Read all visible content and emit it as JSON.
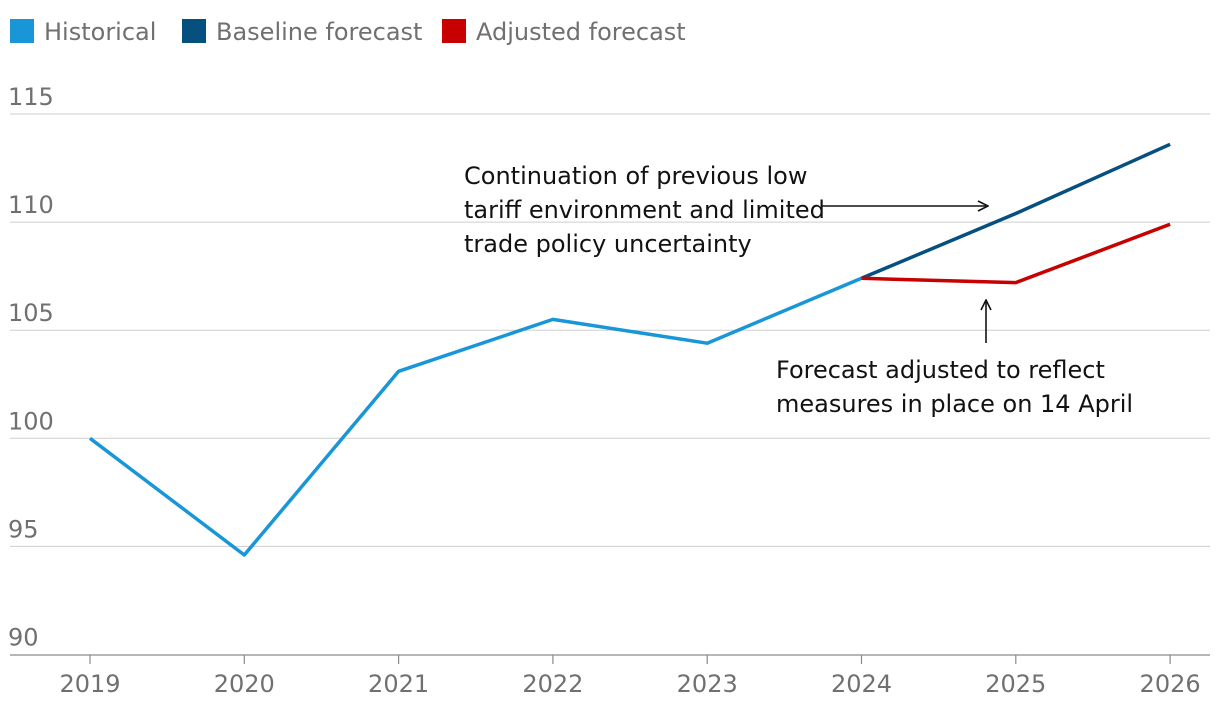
{
  "chart_data": {
    "type": "line",
    "title": "",
    "xlabel": "",
    "ylabel": "",
    "categories": [
      "2019",
      "2020",
      "2021",
      "2022",
      "2023",
      "2024",
      "2025",
      "2026"
    ],
    "y_ticks": [
      "115",
      "110",
      "105",
      "100",
      "95",
      "90"
    ],
    "ylim": [
      90,
      115
    ],
    "grid": true,
    "legend_position": "top-left",
    "series": [
      {
        "name": "Historical",
        "color": "#1996d8",
        "points": [
          {
            "x": "2019",
            "y": 100.0
          },
          {
            "x": "2020",
            "y": 94.6
          },
          {
            "x": "2021",
            "y": 103.1
          },
          {
            "x": "2022",
            "y": 105.5
          },
          {
            "x": "2023",
            "y": 104.4
          },
          {
            "x": "2024",
            "y": 107.4
          }
        ]
      },
      {
        "name": "Baseline forecast",
        "color": "#05507f",
        "points": [
          {
            "x": "2024",
            "y": 107.4
          },
          {
            "x": "2025",
            "y": 110.4
          },
          {
            "x": "2026",
            "y": 113.6
          }
        ]
      },
      {
        "name": "Adjusted forecast",
        "color": "#c70000",
        "points": [
          {
            "x": "2024",
            "y": 107.4
          },
          {
            "x": "2025",
            "y": 107.2
          },
          {
            "x": "2026",
            "y": 109.9
          }
        ]
      }
    ],
    "annotations": [
      {
        "name": "baseline-annotation",
        "lines": [
          "Continuation of previous low",
          "tariff environment and limited",
          "trade policy uncertainty"
        ]
      },
      {
        "name": "adjusted-annotation",
        "lines": [
          "Forecast adjusted to reflect",
          "measures in place on 14 April"
        ]
      }
    ]
  }
}
